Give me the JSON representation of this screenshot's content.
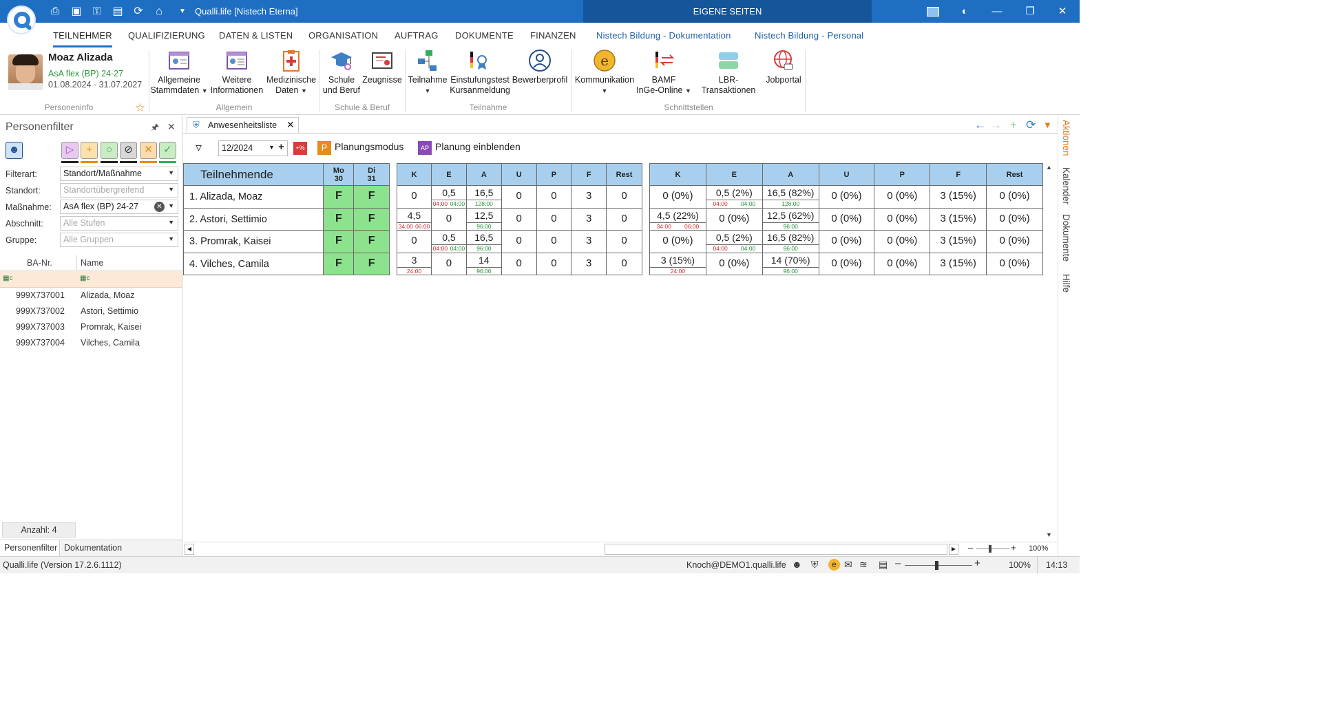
{
  "titlebar": {
    "title": "Qualli.life [Nistech Eterna]",
    "eigene_seiten": "EIGENE SEITEN",
    "quick_icons": [
      "print-icon",
      "save-icon",
      "lock-icon",
      "export-icon",
      "refresh-icon",
      "home-icon",
      "dropdown-icon"
    ]
  },
  "menu": {
    "tabs": [
      "TEILNEHMER",
      "QUALIFIZIERUNG",
      "DATEN & LISTEN",
      "ORGANISATION",
      "AUFTRAG",
      "DOKUMENTE",
      "FINANZEN",
      "Nistech Bildung - Dokumentation",
      "Nistech Bildung - Personal"
    ],
    "active": "TEILNEHMER"
  },
  "ribbon": {
    "person": {
      "name": "Moaz Alizada",
      "course": "AsA flex (BP) 24-27",
      "dates": "01.08.2024 - 31.07.2027",
      "group_label": "Personeninfo"
    },
    "groups": {
      "allgemein": "Allgemein",
      "schule": "Schule & Beruf",
      "teilnahme": "Teilnahme",
      "schnittstellen": "Schnittstellen"
    },
    "buttons": {
      "stammdaten_1": "Allgemeine",
      "stammdaten_2": "Stammdaten",
      "weitere_1": "Weitere",
      "weitere_2": "Informationen",
      "medizin_1": "Medizinische",
      "medizin_2": "Daten",
      "schule_1": "Schule",
      "schule_2": "und Beruf",
      "zeugnisse": "Zeugnisse",
      "teilnahme": "Teilnahme",
      "einstufung_1": "Einstufungstest",
      "einstufung_2": "Kursanmeldung",
      "bewerber": "Bewerberprofil",
      "kommunikation": "Kommunikation",
      "bamf_1": "BAMF",
      "bamf_2": "InGe-Online",
      "lbr": "LBR-Transaktionen",
      "jobportal": "Jobportal"
    }
  },
  "left_panel": {
    "title": "Personenfilter",
    "filters": {
      "filterart_label": "Filterart:",
      "filterart_value": "Standort/Maßnahme",
      "standort_label": "Standort:",
      "standort_placeholder": "Standortübergreifend",
      "massnahme_label": "Maßnahme:",
      "massnahme_value": "AsA flex (BP) 24-27",
      "abschnitt_label": "Abschnitt:",
      "abschnitt_placeholder": "Alle Stufen",
      "gruppe_label": "Gruppe:",
      "gruppe_placeholder": "Alle Gruppen"
    },
    "columns": {
      "ba": "BA-Nr.",
      "name": "Name"
    },
    "rows": [
      {
        "ba": "999X737001",
        "name": "Alizada, Moaz"
      },
      {
        "ba": "999X737002",
        "name": "Astori, Settimio"
      },
      {
        "ba": "999X737003",
        "name": "Promrak, Kaisei"
      },
      {
        "ba": "999X737004",
        "name": "Vilches, Camila"
      }
    ],
    "count": "Anzahl: 4",
    "bottom_tabs": [
      "Personenfilter",
      "Dokumentation"
    ]
  },
  "document": {
    "tab_title": "Anwesenheitsliste",
    "month": "12/2024",
    "percent_badge": "+%",
    "planungsmodus": "Planungsmodus",
    "planung_einblenden": "Planung einblenden",
    "planungsmodus_icon_text": "P",
    "planung_icon_text": "AP"
  },
  "table": {
    "header_name": "Teilnehmende",
    "days": [
      {
        "d": "Mo",
        "n": "30"
      },
      {
        "d": "Di",
        "n": "31"
      }
    ],
    "sum_cols": [
      "K",
      "E",
      "A",
      "U",
      "P",
      "F",
      "Rest"
    ],
    "rows": [
      {
        "name": "1.  Alizada, Moaz",
        "days": [
          "F",
          "F"
        ],
        "sums": {
          "K": "0",
          "E": "0,5",
          "E_sub": [
            "04:00",
            "04:00"
          ],
          "A": "16,5",
          "A_sub": "128:00",
          "U": "0",
          "P": "0",
          "F": "3",
          "Rest": "0"
        },
        "pct": {
          "K": "0 (0%)",
          "E": "0,5 (2%)",
          "E_sub": [
            "04:00",
            "04:00"
          ],
          "A": "16,5 (82%)",
          "A_sub": "128:00",
          "U": "0 (0%)",
          "P": "0 (0%)",
          "F": "3 (15%)",
          "Rest": "0 (0%)"
        }
      },
      {
        "name": "2.  Astori, Settimio",
        "days": [
          "F",
          "F"
        ],
        "sums": {
          "K": "4,5",
          "K_sub": [
            "34:00",
            "06:00"
          ],
          "E": "0",
          "A": "12,5",
          "A_sub": "96:00",
          "U": "0",
          "P": "0",
          "F": "3",
          "Rest": "0"
        },
        "pct": {
          "K": "4,5 (22%)",
          "K_sub": [
            "34:00",
            "06:00"
          ],
          "E": "0 (0%)",
          "A": "12,5 (62%)",
          "A_sub": "96:00",
          "U": "0 (0%)",
          "P": "0 (0%)",
          "F": "3 (15%)",
          "Rest": "0 (0%)"
        }
      },
      {
        "name": "3.  Promrak, Kaisei",
        "days": [
          "F",
          "F"
        ],
        "sums": {
          "K": "0",
          "E": "0,5",
          "E_sub": [
            "04:00",
            "04:00"
          ],
          "A": "16,5",
          "A_sub": "96:00",
          "U": "0",
          "P": "0",
          "F": "3",
          "Rest": "0"
        },
        "pct": {
          "K": "0 (0%)",
          "E": "0,5 (2%)",
          "E_sub": [
            "04:00",
            "04:00"
          ],
          "A": "16,5 (82%)",
          "A_sub": "96:00",
          "U": "0 (0%)",
          "P": "0 (0%)",
          "F": "3 (15%)",
          "Rest": "0 (0%)"
        }
      },
      {
        "name": "4.  Vilches, Camila",
        "days": [
          "F",
          "F"
        ],
        "sums": {
          "K": "3",
          "K_sub": "24:00",
          "E": "0",
          "A": "14",
          "A_sub": "96:00",
          "U": "0",
          "P": "0",
          "F": "3",
          "Rest": "0"
        },
        "pct": {
          "K": "3 (15%)",
          "K_sub": "24:00",
          "E": "0 (0%)",
          "A": "14 (70%)",
          "A_sub": "96:00",
          "U": "0 (0%)",
          "P": "0 (0%)",
          "F": "3 (15%)",
          "Rest": "0 (0%)"
        }
      }
    ]
  },
  "right_sidebar": [
    "Aktionen",
    "Kalender",
    "Dokumente",
    "Hilfe"
  ],
  "statusbar": {
    "version": "Qualli.life (Version 17.2.6.1112)",
    "user": "Knoch@DEMO1.qualli.life",
    "zoom_inner": "100%",
    "zoom": "100%",
    "time": "14:13"
  },
  "colors": {
    "accent": "#1e6fc2",
    "header_blue": "#a8d0ee",
    "present_green": "#8de28d",
    "active_orange": "#e17a20"
  }
}
